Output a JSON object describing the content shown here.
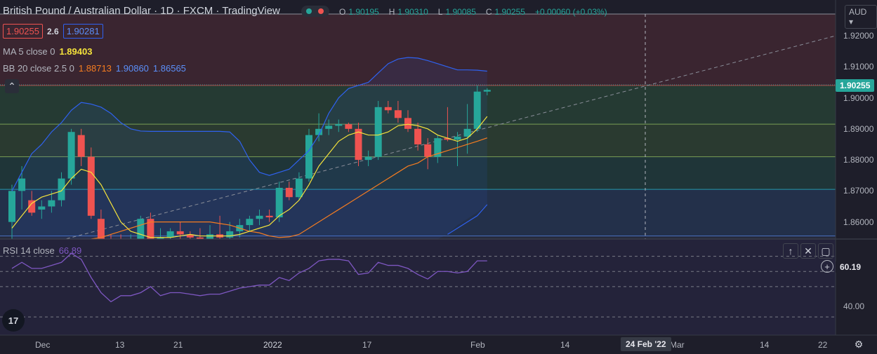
{
  "header": {
    "title": "British Pound / Australian Dollar · 1D · FXCM · TradingView",
    "ohlc": {
      "open_label": "O",
      "open": "1.90195",
      "high_label": "H",
      "high": "1.90310",
      "low_label": "L",
      "low": "1.90085",
      "close_label": "C",
      "close": "1.90255",
      "change": "+0.00060 (+0.03%)"
    },
    "bid": "1.90255",
    "spread": "2.6",
    "ask": "1.90281"
  },
  "indicators": {
    "ma": {
      "label": "MA 5 close 0",
      "value": "1.89403"
    },
    "bb": {
      "label": "BB 20 close 2.5 0",
      "basis": "1.88713",
      "upper": "1.90860",
      "lower": "1.86565"
    },
    "rsi": {
      "label": "RSI 14 close",
      "value": "66.89"
    }
  },
  "price_axis": {
    "currency": "AUD",
    "ticks": [
      "1.92000",
      "1.91000",
      "1.90000",
      "1.89000",
      "1.88000",
      "1.87000",
      "1.86000"
    ],
    "last_price": "1.90255"
  },
  "rsi_axis": {
    "value_tag": "60.19",
    "tick": "40.00"
  },
  "time_axis": {
    "labels": [
      "Dec",
      "13",
      "21",
      "2022",
      "17",
      "Feb",
      "14",
      "Mar",
      "14",
      "22"
    ],
    "crosshair_date": "24 Feb '22"
  },
  "colors": {
    "background": "#1e1e2a",
    "up": "#26a69a",
    "down": "#ef5350",
    "ma": "#f5e33b",
    "bb_basis": "#f57c20",
    "bb_band": "#2f62f0",
    "rsi": "#7e57c2",
    "accent": "#26a69a"
  },
  "chart_data": {
    "type": "candlestick",
    "ylim": [
      1.8545,
      1.927
    ],
    "candles": [
      {
        "o": 1.86,
        "h": 1.872,
        "l": 1.854,
        "c": 1.87
      },
      {
        "o": 1.87,
        "h": 1.878,
        "l": 1.864,
        "c": 1.874
      },
      {
        "o": 1.867,
        "h": 1.87,
        "l": 1.862,
        "c": 1.863
      },
      {
        "o": 1.864,
        "h": 1.867,
        "l": 1.861,
        "c": 1.865
      },
      {
        "o": 1.865,
        "h": 1.87,
        "l": 1.863,
        "c": 1.867
      },
      {
        "o": 1.867,
        "h": 1.876,
        "l": 1.865,
        "c": 1.874
      },
      {
        "o": 1.874,
        "h": 1.89,
        "l": 1.872,
        "c": 1.889
      },
      {
        "o": 1.888,
        "h": 1.89,
        "l": 1.878,
        "c": 1.881
      },
      {
        "o": 1.881,
        "h": 1.884,
        "l": 1.861,
        "c": 1.862
      },
      {
        "o": 1.861,
        "h": 1.864,
        "l": 1.853,
        "c": 1.854
      },
      {
        "o": 1.854,
        "h": 1.856,
        "l": 1.85,
        "c": 1.852
      },
      {
        "o": 1.852,
        "h": 1.856,
        "l": 1.848,
        "c": 1.85
      },
      {
        "o": 1.85,
        "h": 1.856,
        "l": 1.847,
        "c": 1.853
      },
      {
        "o": 1.854,
        "h": 1.862,
        "l": 1.852,
        "c": 1.861
      },
      {
        "o": 1.861,
        "h": 1.863,
        "l": 1.853,
        "c": 1.854
      },
      {
        "o": 1.854,
        "h": 1.858,
        "l": 1.851,
        "c": 1.855
      },
      {
        "o": 1.855,
        "h": 1.858,
        "l": 1.853,
        "c": 1.857
      },
      {
        "o": 1.857,
        "h": 1.86,
        "l": 1.854,
        "c": 1.856
      },
      {
        "o": 1.856,
        "h": 1.857,
        "l": 1.852,
        "c": 1.855
      },
      {
        "o": 1.855,
        "h": 1.858,
        "l": 1.853,
        "c": 1.854
      },
      {
        "o": 1.854,
        "h": 1.859,
        "l": 1.852,
        "c": 1.856
      },
      {
        "o": 1.856,
        "h": 1.862,
        "l": 1.854,
        "c": 1.855
      },
      {
        "o": 1.855,
        "h": 1.86,
        "l": 1.853,
        "c": 1.857
      },
      {
        "o": 1.857,
        "h": 1.861,
        "l": 1.855,
        "c": 1.859
      },
      {
        "o": 1.859,
        "h": 1.862,
        "l": 1.857,
        "c": 1.861
      },
      {
        "o": 1.861,
        "h": 1.864,
        "l": 1.859,
        "c": 1.862
      },
      {
        "o": 1.862,
        "h": 1.864,
        "l": 1.86,
        "c": 1.8615
      },
      {
        "o": 1.8615,
        "h": 1.873,
        "l": 1.86,
        "c": 1.871
      },
      {
        "o": 1.871,
        "h": 1.873,
        "l": 1.867,
        "c": 1.868
      },
      {
        "o": 1.868,
        "h": 1.876,
        "l": 1.867,
        "c": 1.874
      },
      {
        "o": 1.874,
        "h": 1.89,
        "l": 1.873,
        "c": 1.888
      },
      {
        "o": 1.888,
        "h": 1.895,
        "l": 1.886,
        "c": 1.89
      },
      {
        "o": 1.89,
        "h": 1.893,
        "l": 1.888,
        "c": 1.891
      },
      {
        "o": 1.891,
        "h": 1.893,
        "l": 1.889,
        "c": 1.8915
      },
      {
        "o": 1.8915,
        "h": 1.892,
        "l": 1.889,
        "c": 1.89
      },
      {
        "o": 1.89,
        "h": 1.892,
        "l": 1.878,
        "c": 1.88
      },
      {
        "o": 1.88,
        "h": 1.883,
        "l": 1.878,
        "c": 1.881
      },
      {
        "o": 1.881,
        "h": 1.899,
        "l": 1.88,
        "c": 1.897
      },
      {
        "o": 1.897,
        "h": 1.899,
        "l": 1.895,
        "c": 1.896
      },
      {
        "o": 1.896,
        "h": 1.899,
        "l": 1.892,
        "c": 1.8935
      },
      {
        "o": 1.8935,
        "h": 1.896,
        "l": 1.889,
        "c": 1.89
      },
      {
        "o": 1.89,
        "h": 1.892,
        "l": 1.883,
        "c": 1.885
      },
      {
        "o": 1.885,
        "h": 1.887,
        "l": 1.877,
        "c": 1.881
      },
      {
        "o": 1.881,
        "h": 1.888,
        "l": 1.879,
        "c": 1.887
      },
      {
        "o": 1.887,
        "h": 1.897,
        "l": 1.886,
        "c": 1.8865
      },
      {
        "o": 1.8865,
        "h": 1.889,
        "l": 1.878,
        "c": 1.8875
      },
      {
        "o": 1.8875,
        "h": 1.898,
        "l": 1.882,
        "c": 1.89
      },
      {
        "o": 1.89,
        "h": 1.904,
        "l": 1.889,
        "c": 1.902
      },
      {
        "o": 1.902,
        "h": 1.9031,
        "l": 1.9008,
        "c": 1.90255
      }
    ],
    "ma5": [
      1.858,
      1.862,
      1.866,
      1.868,
      1.869,
      1.87,
      1.874,
      1.877,
      1.876,
      1.872,
      1.866,
      1.86,
      1.857,
      1.856,
      1.855,
      1.854,
      1.855,
      1.8555,
      1.856,
      1.8555,
      1.8555,
      1.8555,
      1.8555,
      1.856,
      1.857,
      1.858,
      1.859,
      1.862,
      1.864,
      1.867,
      1.872,
      1.878,
      1.882,
      1.886,
      1.888,
      1.889,
      1.888,
      1.888,
      1.889,
      1.891,
      1.8915,
      1.891,
      1.89,
      1.888,
      1.887,
      1.886,
      1.887,
      1.89,
      1.894
    ],
    "bb_upper": [
      1.87,
      1.876,
      1.882,
      1.885,
      1.889,
      1.892,
      1.896,
      1.8985,
      1.898,
      1.897,
      1.895,
      1.892,
      1.89,
      1.8893,
      1.8892,
      1.8892,
      1.8892,
      1.8892,
      1.8892,
      1.8892,
      1.8892,
      1.8892,
      1.889,
      1.886,
      1.88,
      1.876,
      1.875,
      1.876,
      1.877,
      1.88,
      1.883,
      1.888,
      1.895,
      1.9,
      1.903,
      1.904,
      1.905,
      1.908,
      1.911,
      1.9125,
      1.913,
      1.9128,
      1.912,
      1.911,
      1.91,
      1.909,
      1.909,
      1.9089,
      1.9086
    ],
    "bb_basis": [
      1.845,
      1.847,
      1.849,
      1.85,
      1.851,
      1.852,
      1.853,
      1.854,
      1.8545,
      1.855,
      1.856,
      1.857,
      1.858,
      1.859,
      1.86,
      1.86,
      1.86,
      1.86,
      1.86,
      1.86,
      1.86,
      1.8595,
      1.859,
      1.858,
      1.857,
      1.8565,
      1.8555,
      1.855,
      1.8552,
      1.856,
      1.858,
      1.86,
      1.862,
      1.864,
      1.866,
      1.868,
      1.87,
      1.872,
      1.874,
      1.876,
      1.878,
      1.879,
      1.881,
      1.882,
      1.883,
      1.884,
      1.885,
      1.886,
      1.8871
    ],
    "bb_lower_tail": [
      1.854,
      1.856,
      1.858,
      1.86,
      1.862,
      1.8656
    ],
    "rsi": [
      62,
      66,
      62,
      62,
      64,
      66,
      72,
      68,
      56,
      46,
      40,
      44,
      44,
      46,
      50,
      44,
      46,
      46,
      45,
      44,
      45,
      45,
      47,
      49,
      50,
      51,
      51,
      56,
      54,
      59,
      62,
      67,
      68,
      68,
      67,
      58,
      59,
      66,
      64,
      64,
      62,
      58,
      55,
      60,
      60,
      59,
      60,
      67,
      67
    ]
  }
}
